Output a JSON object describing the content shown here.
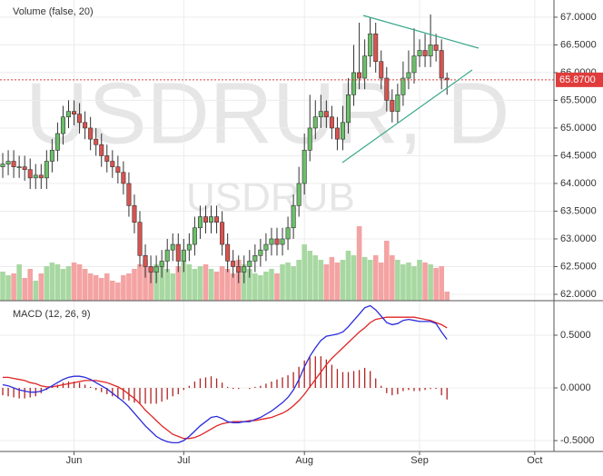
{
  "chart_data": [
    {
      "type": "candlestick",
      "title": "USDRUR, D",
      "subtitle": "USDRUB",
      "volume_label": "Volume (false, 20)",
      "xlim": [
        -0.5,
        100.5
      ],
      "ylim": [
        61.885,
        67.31
      ],
      "yticks": [
        {
          "value": 62,
          "label": "62.0000"
        },
        {
          "value": 62.5,
          "label": "62.5000"
        },
        {
          "value": 63,
          "label": "63.0000"
        },
        {
          "value": 63.5,
          "label": "63.5000"
        },
        {
          "value": 64,
          "label": "64.0000"
        },
        {
          "value": 64.5,
          "label": "64.5000"
        },
        {
          "value": 65,
          "label": "65.0000"
        },
        {
          "value": 65.5,
          "label": "65.5000"
        },
        {
          "value": 66,
          "label": "66.0000"
        },
        {
          "value": 66.5,
          "label": "66.5000"
        },
        {
          "value": 67,
          "label": "67.0000"
        }
      ],
      "last_price": {
        "value": 65.87,
        "label": "65.8700"
      },
      "up_color": "#6cbf6a",
      "down_color": "#d9534f",
      "volume_up_color": "#a8d8a2",
      "volume_down_color": "#f4a3a3",
      "last_price_color": "#e03c3c",
      "open": [
        64.3,
        64.35,
        64.4,
        64.3,
        64.3,
        64.25,
        64.1,
        64.15,
        64.1,
        64.4,
        64.6,
        64.9,
        65.2,
        65.3,
        65.25,
        65.1,
        65.0,
        64.8,
        64.7,
        64.5,
        64.4,
        64.3,
        64.2,
        64.0,
        63.6,
        63.3,
        62.7,
        62.5,
        62.4,
        62.5,
        62.6,
        62.8,
        62.9,
        62.6,
        62.8,
        62.9,
        63.2,
        63.4,
        63.3,
        63.4,
        63.3,
        62.9,
        62.6,
        62.5,
        62.4,
        62.5,
        62.6,
        62.7,
        62.8,
        62.9,
        63.0,
        62.9,
        63.0,
        63.2,
        63.6,
        64.0,
        64.6,
        65.0,
        65.2,
        65.3,
        65.2,
        65.0,
        64.8,
        65.1,
        65.6,
        66.0,
        65.9,
        66.3,
        66.7,
        66.2,
        65.9,
        65.5,
        65.3,
        65.6,
        65.9,
        66.0,
        66.3,
        66.4,
        66.3,
        66.5,
        66.4,
        65.9
      ],
      "high": [
        64.55,
        64.6,
        64.6,
        64.5,
        64.5,
        64.45,
        64.35,
        64.35,
        64.6,
        64.8,
        65.1,
        65.4,
        65.5,
        65.5,
        65.45,
        65.3,
        65.2,
        65.0,
        64.9,
        64.7,
        64.6,
        64.5,
        64.4,
        64.2,
        63.8,
        63.5,
        62.9,
        62.7,
        62.7,
        62.8,
        63.0,
        63.1,
        63.1,
        63.0,
        63.1,
        63.4,
        63.6,
        63.6,
        63.6,
        63.6,
        63.5,
        63.1,
        62.8,
        62.7,
        62.7,
        62.8,
        62.9,
        63.0,
        63.1,
        63.2,
        63.2,
        63.2,
        63.4,
        63.8,
        64.3,
        64.9,
        65.6,
        65.5,
        65.6,
        65.5,
        65.4,
        65.2,
        65.4,
        65.9,
        66.5,
        66.9,
        66.6,
        67.0,
        66.9,
        66.4,
        66.1,
        65.7,
        65.8,
        66.2,
        66.4,
        66.8,
        66.6,
        66.7,
        67.05,
        66.7,
        66.6,
        66.0
      ],
      "low": [
        64.1,
        64.15,
        64.1,
        64.1,
        64.05,
        63.9,
        63.9,
        63.9,
        63.9,
        64.2,
        64.4,
        64.7,
        65.0,
        65.05,
        64.9,
        64.8,
        64.6,
        64.5,
        64.3,
        64.2,
        64.1,
        64.0,
        63.8,
        63.4,
        63.1,
        62.5,
        62.3,
        62.2,
        62.2,
        62.3,
        62.4,
        62.6,
        62.4,
        62.4,
        62.6,
        62.7,
        63.0,
        63.1,
        63.1,
        63.1,
        62.7,
        62.4,
        62.3,
        62.2,
        62.2,
        62.3,
        62.4,
        62.5,
        62.6,
        62.7,
        62.7,
        62.7,
        62.8,
        63.0,
        63.4,
        63.8,
        64.4,
        64.8,
        65.0,
        65.0,
        64.8,
        64.6,
        64.6,
        64.9,
        65.4,
        65.7,
        65.7,
        66.1,
        66.0,
        65.7,
        65.3,
        65.1,
        65.1,
        65.4,
        65.7,
        65.8,
        66.1,
        66.1,
        66.1,
        66.2,
        65.7,
        65.6
      ],
      "close": [
        64.35,
        64.4,
        64.3,
        64.3,
        64.25,
        64.1,
        64.15,
        64.1,
        64.4,
        64.6,
        64.9,
        65.2,
        65.3,
        65.25,
        65.1,
        65.0,
        64.8,
        64.7,
        64.5,
        64.4,
        64.3,
        64.2,
        64.0,
        63.6,
        63.3,
        62.7,
        62.5,
        62.4,
        62.5,
        62.6,
        62.8,
        62.9,
        62.6,
        62.8,
        62.9,
        63.2,
        63.4,
        63.3,
        63.4,
        63.3,
        62.9,
        62.6,
        62.5,
        62.4,
        62.5,
        62.6,
        62.7,
        62.8,
        62.9,
        63.0,
        62.9,
        63.0,
        63.2,
        63.6,
        64.0,
        64.6,
        65.0,
        65.2,
        65.3,
        65.2,
        65.0,
        64.8,
        65.1,
        65.6,
        66.0,
        65.9,
        66.3,
        66.7,
        66.2,
        65.9,
        65.5,
        65.3,
        65.6,
        65.9,
        66.0,
        66.3,
        66.4,
        66.3,
        66.5,
        66.4,
        65.9,
        65.87
      ],
      "volume": [
        32,
        28,
        30,
        40,
        25,
        35,
        22,
        30,
        38,
        42,
        40,
        35,
        38,
        42,
        40,
        35,
        30,
        28,
        25,
        30,
        22,
        20,
        28,
        30,
        35,
        40,
        45,
        38,
        40,
        42,
        35,
        30,
        38,
        45,
        40,
        35,
        38,
        40,
        35,
        32,
        38,
        35,
        30,
        45,
        40,
        35,
        30,
        28,
        32,
        35,
        30,
        40,
        42,
        38,
        45,
        62,
        55,
        50,
        45,
        40,
        48,
        42,
        45,
        55,
        50,
        82,
        48,
        45,
        50,
        42,
        66,
        50,
        45,
        40,
        42,
        38,
        45,
        42,
        40,
        36,
        38,
        10
      ]
    },
    {
      "type": "macd",
      "title": "MACD (12, 26, 9)",
      "xlim": [
        -0.5,
        100.5
      ],
      "ylim": [
        -0.603,
        0.81
      ],
      "xticks": [
        {
          "value": 13,
          "label": "Jun"
        },
        {
          "value": 33,
          "label": "Jul"
        },
        {
          "value": 55,
          "label": "Aug"
        },
        {
          "value": 76,
          "label": "Sep"
        },
        {
          "value": 97,
          "label": "Oct"
        }
      ],
      "yticks": [
        {
          "value": -0.5,
          "label": "-0.5000"
        },
        {
          "value": 0,
          "label": "0.0000"
        },
        {
          "value": 0.5,
          "label": "0.5000"
        }
      ],
      "macd": {
        "color": "#2b2bdc",
        "values": [
          0.03,
          0.02,
          0.0,
          -0.02,
          -0.03,
          -0.04,
          -0.04,
          -0.03,
          -0.01,
          0.02,
          0.05,
          0.08,
          0.1,
          0.11,
          0.11,
          0.1,
          0.08,
          0.05,
          0.02,
          -0.01,
          -0.05,
          -0.09,
          -0.13,
          -0.18,
          -0.24,
          -0.3,
          -0.36,
          -0.41,
          -0.46,
          -0.49,
          -0.51,
          -0.52,
          -0.52,
          -0.5,
          -0.46,
          -0.41,
          -0.36,
          -0.32,
          -0.28,
          -0.27,
          -0.29,
          -0.32,
          -0.33,
          -0.33,
          -0.32,
          -0.32,
          -0.3,
          -0.28,
          -0.25,
          -0.22,
          -0.18,
          -0.14,
          -0.09,
          -0.02,
          0.08,
          0.2,
          0.3,
          0.38,
          0.45,
          0.49,
          0.5,
          0.51,
          0.53,
          0.58,
          0.64,
          0.7,
          0.76,
          0.78,
          0.74,
          0.68,
          0.62,
          0.6,
          0.61,
          0.64,
          0.65,
          0.64,
          0.63,
          0.63,
          0.63,
          0.61,
          0.53,
          0.46
        ]
      },
      "signal": {
        "color": "#e02424",
        "values": [
          0.1,
          0.1,
          0.09,
          0.08,
          0.07,
          0.05,
          0.04,
          0.02,
          0.01,
          0.01,
          0.02,
          0.03,
          0.04,
          0.05,
          0.06,
          0.07,
          0.07,
          0.07,
          0.06,
          0.05,
          0.03,
          0.01,
          -0.02,
          -0.06,
          -0.1,
          -0.15,
          -0.21,
          -0.26,
          -0.31,
          -0.36,
          -0.4,
          -0.44,
          -0.46,
          -0.48,
          -0.48,
          -0.47,
          -0.45,
          -0.42,
          -0.39,
          -0.36,
          -0.34,
          -0.33,
          -0.32,
          -0.32,
          -0.32,
          -0.31,
          -0.31,
          -0.3,
          -0.29,
          -0.28,
          -0.26,
          -0.24,
          -0.21,
          -0.17,
          -0.12,
          -0.06,
          0.01,
          0.08,
          0.15,
          0.22,
          0.28,
          0.33,
          0.38,
          0.43,
          0.48,
          0.53,
          0.57,
          0.62,
          0.65,
          0.66,
          0.67,
          0.67,
          0.67,
          0.67,
          0.67,
          0.67,
          0.66,
          0.65,
          0.64,
          0.62,
          0.6,
          0.57
        ]
      },
      "histogram": {
        "color": "#b22222",
        "values": [
          -0.07,
          -0.08,
          -0.09,
          -0.1,
          -0.1,
          -0.09,
          -0.08,
          -0.05,
          -0.02,
          0.01,
          0.03,
          0.05,
          0.06,
          0.06,
          0.05,
          0.03,
          0.01,
          -0.02,
          -0.04,
          -0.06,
          -0.08,
          -0.1,
          -0.11,
          -0.12,
          -0.14,
          -0.15,
          -0.15,
          -0.15,
          -0.15,
          -0.13,
          -0.11,
          -0.08,
          -0.06,
          -0.02,
          0.02,
          0.06,
          0.09,
          0.1,
          0.11,
          0.09,
          0.05,
          0.01,
          -0.01,
          -0.01,
          0.0,
          -0.01,
          0.01,
          0.02,
          0.04,
          0.06,
          0.08,
          0.1,
          0.12,
          0.15,
          0.2,
          0.26,
          0.29,
          0.3,
          0.3,
          0.27,
          0.22,
          0.18,
          0.15,
          0.15,
          0.16,
          0.17,
          0.19,
          0.16,
          0.09,
          0.02,
          -0.05,
          -0.07,
          -0.06,
          -0.03,
          -0.02,
          -0.03,
          -0.03,
          -0.02,
          -0.01,
          -0.01,
          -0.07,
          -0.11
        ]
      }
    }
  ]
}
